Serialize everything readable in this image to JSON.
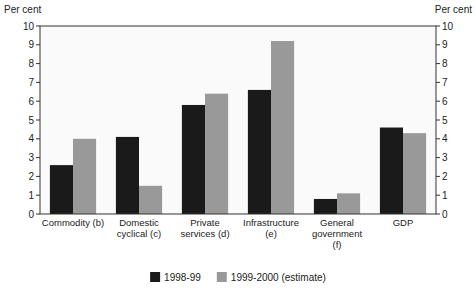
{
  "chart_data": {
    "type": "bar",
    "categories": [
      "Commodity (b)",
      "Domestic\ncyclical (c)",
      "Private\nservices (d)",
      "Infrastructure\n(e)",
      "General\ngovernment\n(f)",
      "GDP"
    ],
    "series": [
      {
        "name": "1998-99",
        "color": "#1a1a1a",
        "values": [
          2.6,
          4.1,
          5.8,
          6.6,
          0.8,
          4.6
        ]
      },
      {
        "name": "1999-2000 (estimate)",
        "color": "#999999",
        "values": [
          4.0,
          1.5,
          6.4,
          9.2,
          1.1,
          4.3
        ]
      }
    ],
    "ylabel": "Per cent",
    "y2label": "Per cent",
    "ylim": [
      0,
      10
    ],
    "yticks": [
      0,
      1,
      2,
      3,
      4,
      5,
      6,
      7,
      8,
      9,
      10
    ],
    "y2lim": [
      0,
      10
    ],
    "y2ticks": [
      0,
      1,
      2,
      3,
      4,
      5,
      6,
      7,
      8,
      9,
      10
    ],
    "grid": false,
    "legend": "bottom"
  }
}
